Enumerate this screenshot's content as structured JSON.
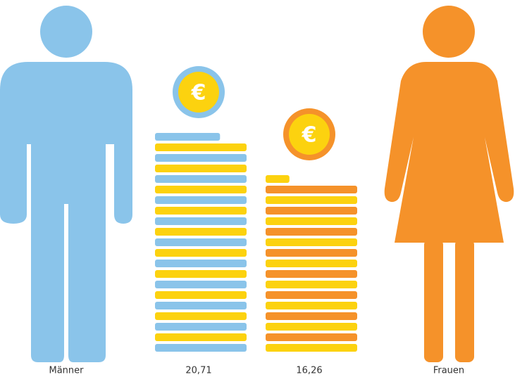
{
  "chart_data": {
    "type": "coin-stack",
    "categories": [
      "Männer",
      "Frauen"
    ],
    "values": [
      20.71,
      16.26
    ],
    "value_labels": [
      "20,71",
      "16,26"
    ],
    "colors": [
      "#8ac4ea",
      "#f5922a"
    ],
    "coin_color": "#fcd20f",
    "symbol": "€"
  }
}
